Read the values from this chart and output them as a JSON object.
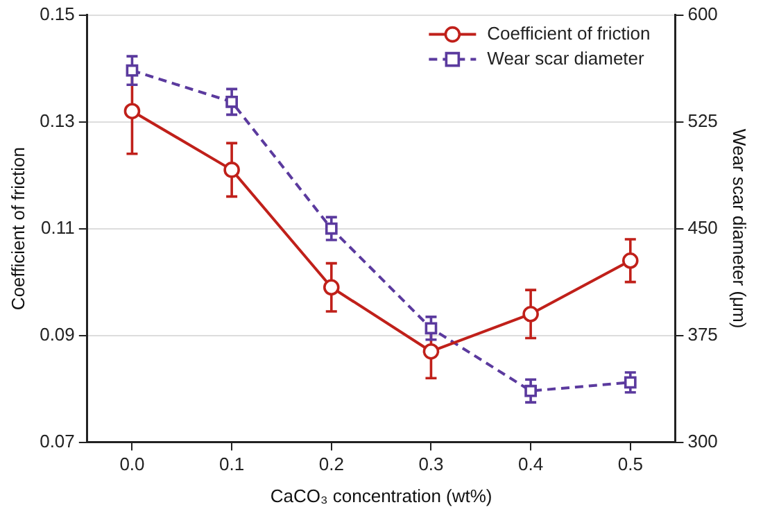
{
  "chart_data": {
    "type": "line",
    "xlabel": "CaCO₃ concentration (wt%)",
    "ylabel": "Coefficient of friction",
    "y2label": "Wear scar diameter (μm)",
    "x": [
      0,
      0.1,
      0.2,
      0.3,
      0.4,
      0.5
    ],
    "xlim": [
      -0.045,
      0.545
    ],
    "xticks": [
      {
        "value": 0,
        "label": "0.0"
      },
      {
        "value": 0.1,
        "label": "0.1"
      },
      {
        "value": 0.2,
        "label": "0.2"
      },
      {
        "value": 0.3,
        "label": "0.3"
      },
      {
        "value": 0.4,
        "label": "0.4"
      },
      {
        "value": 0.5,
        "label": "0.5"
      }
    ],
    "ylim": [
      0.07,
      0.15
    ],
    "yticks": [
      0.07,
      0.09,
      0.11,
      0.13,
      0.15
    ],
    "y2lim": [
      300,
      600
    ],
    "y2ticks": [
      300,
      375,
      450,
      525,
      600
    ],
    "series": [
      {
        "name": "Coefficient of friction",
        "color": "#c0201a",
        "values": [
          0.132,
          0.121,
          0.099,
          0.087,
          0.094,
          0.104
        ],
        "errors": [
          0.008,
          0.005,
          0.0045,
          0.005,
          0.0045,
          0.004
        ],
        "marker": "circle",
        "line_style": "solid"
      },
      {
        "name": "Wear scar diameter",
        "color": "#5b3a9e",
        "axis": "y2",
        "values": [
          561,
          539,
          450,
          380,
          336,
          342
        ],
        "errors": [
          10,
          9,
          8,
          8,
          8,
          7
        ],
        "marker": "square",
        "line_style": "dashed"
      }
    ],
    "grid": "y",
    "legend": "top right"
  }
}
